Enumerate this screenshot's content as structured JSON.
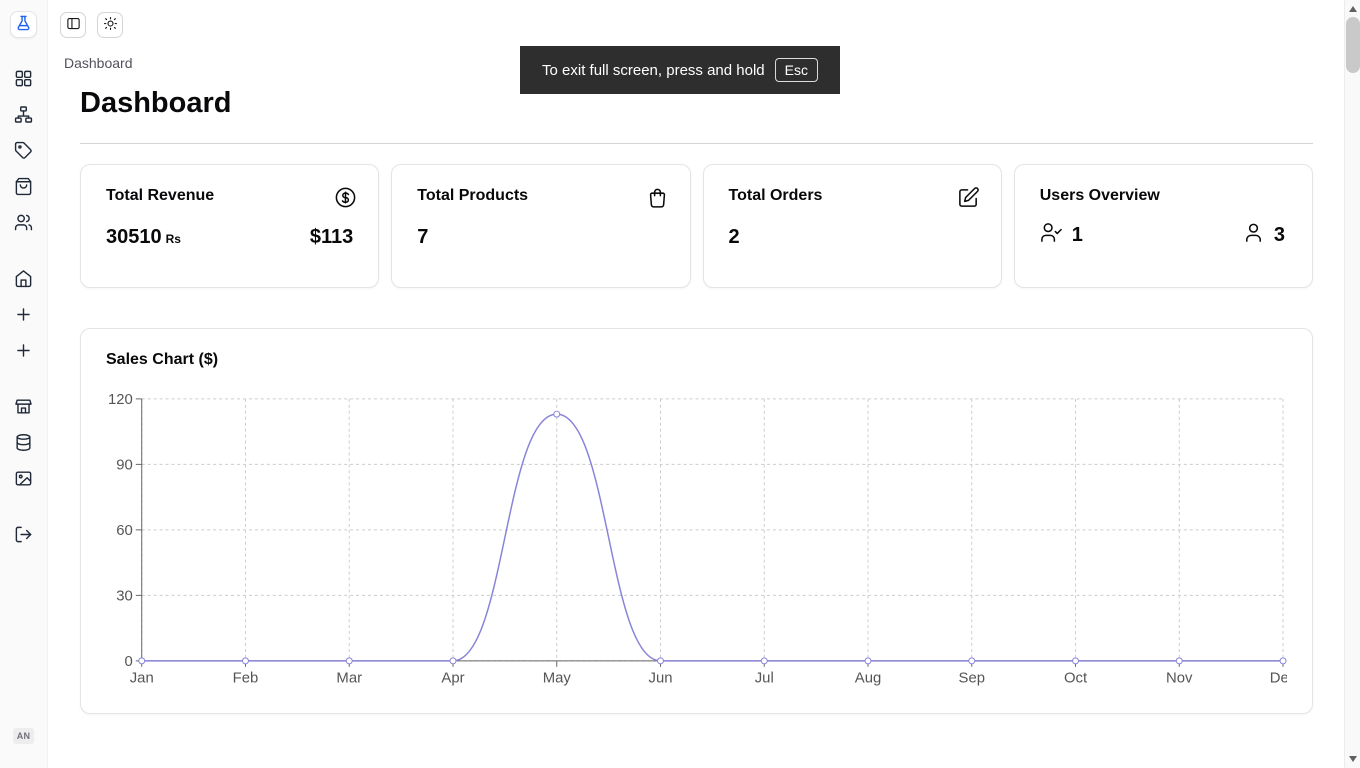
{
  "app": {
    "banner": {
      "text": "To exit full screen, press and hold",
      "key": "Esc"
    }
  },
  "sidebar": {
    "logo_icon": "flask-logo-icon",
    "icons": [
      "grid-icon",
      "sitemap-icon",
      "tag-icon",
      "shopping-bag-icon",
      "users-icon",
      "home-icon",
      "plus-icon",
      "plus-icon",
      "store-icon",
      "database-icon",
      "image-icon",
      "logout-icon"
    ],
    "badge": "AN"
  },
  "topbar": {
    "icons": [
      "sidebar-toggle-icon",
      "sun-icon"
    ]
  },
  "breadcrumb": "Dashboard",
  "page": {
    "title": "Dashboard"
  },
  "cards": [
    {
      "title": "Total Revenue",
      "icon": "dollar-circle-icon",
      "value": "30510",
      "unit": "Rs",
      "secondary": "$113"
    },
    {
      "title": "Total Products",
      "icon": "shopping-bag-icon",
      "value": "7"
    },
    {
      "title": "Total Orders",
      "icon": "edit-icon",
      "value": "2"
    },
    {
      "title": "Users Overview",
      "stats": [
        {
          "icon": "user-check-icon",
          "value": "1"
        },
        {
          "icon": "user-icon",
          "value": "3"
        }
      ]
    }
  ],
  "chart_card": {
    "title": "Sales Chart ($)"
  },
  "chart_data": {
    "type": "line",
    "title": "Sales Chart ($)",
    "x": [
      "Jan",
      "Feb",
      "Mar",
      "Apr",
      "May",
      "Jun",
      "Jul",
      "Aug",
      "Sep",
      "Oct",
      "Nov",
      "Dec"
    ],
    "series": [
      {
        "name": "sales",
        "values": [
          0,
          0,
          0,
          0,
          113,
          0,
          0,
          0,
          0,
          0,
          0,
          0
        ]
      }
    ],
    "ylim": [
      0,
      120
    ],
    "yticks": [
      0,
      30,
      60,
      90,
      120
    ],
    "line_color": "#8884d8",
    "grid": true,
    "legend": false,
    "xlabel": "",
    "ylabel": ""
  }
}
